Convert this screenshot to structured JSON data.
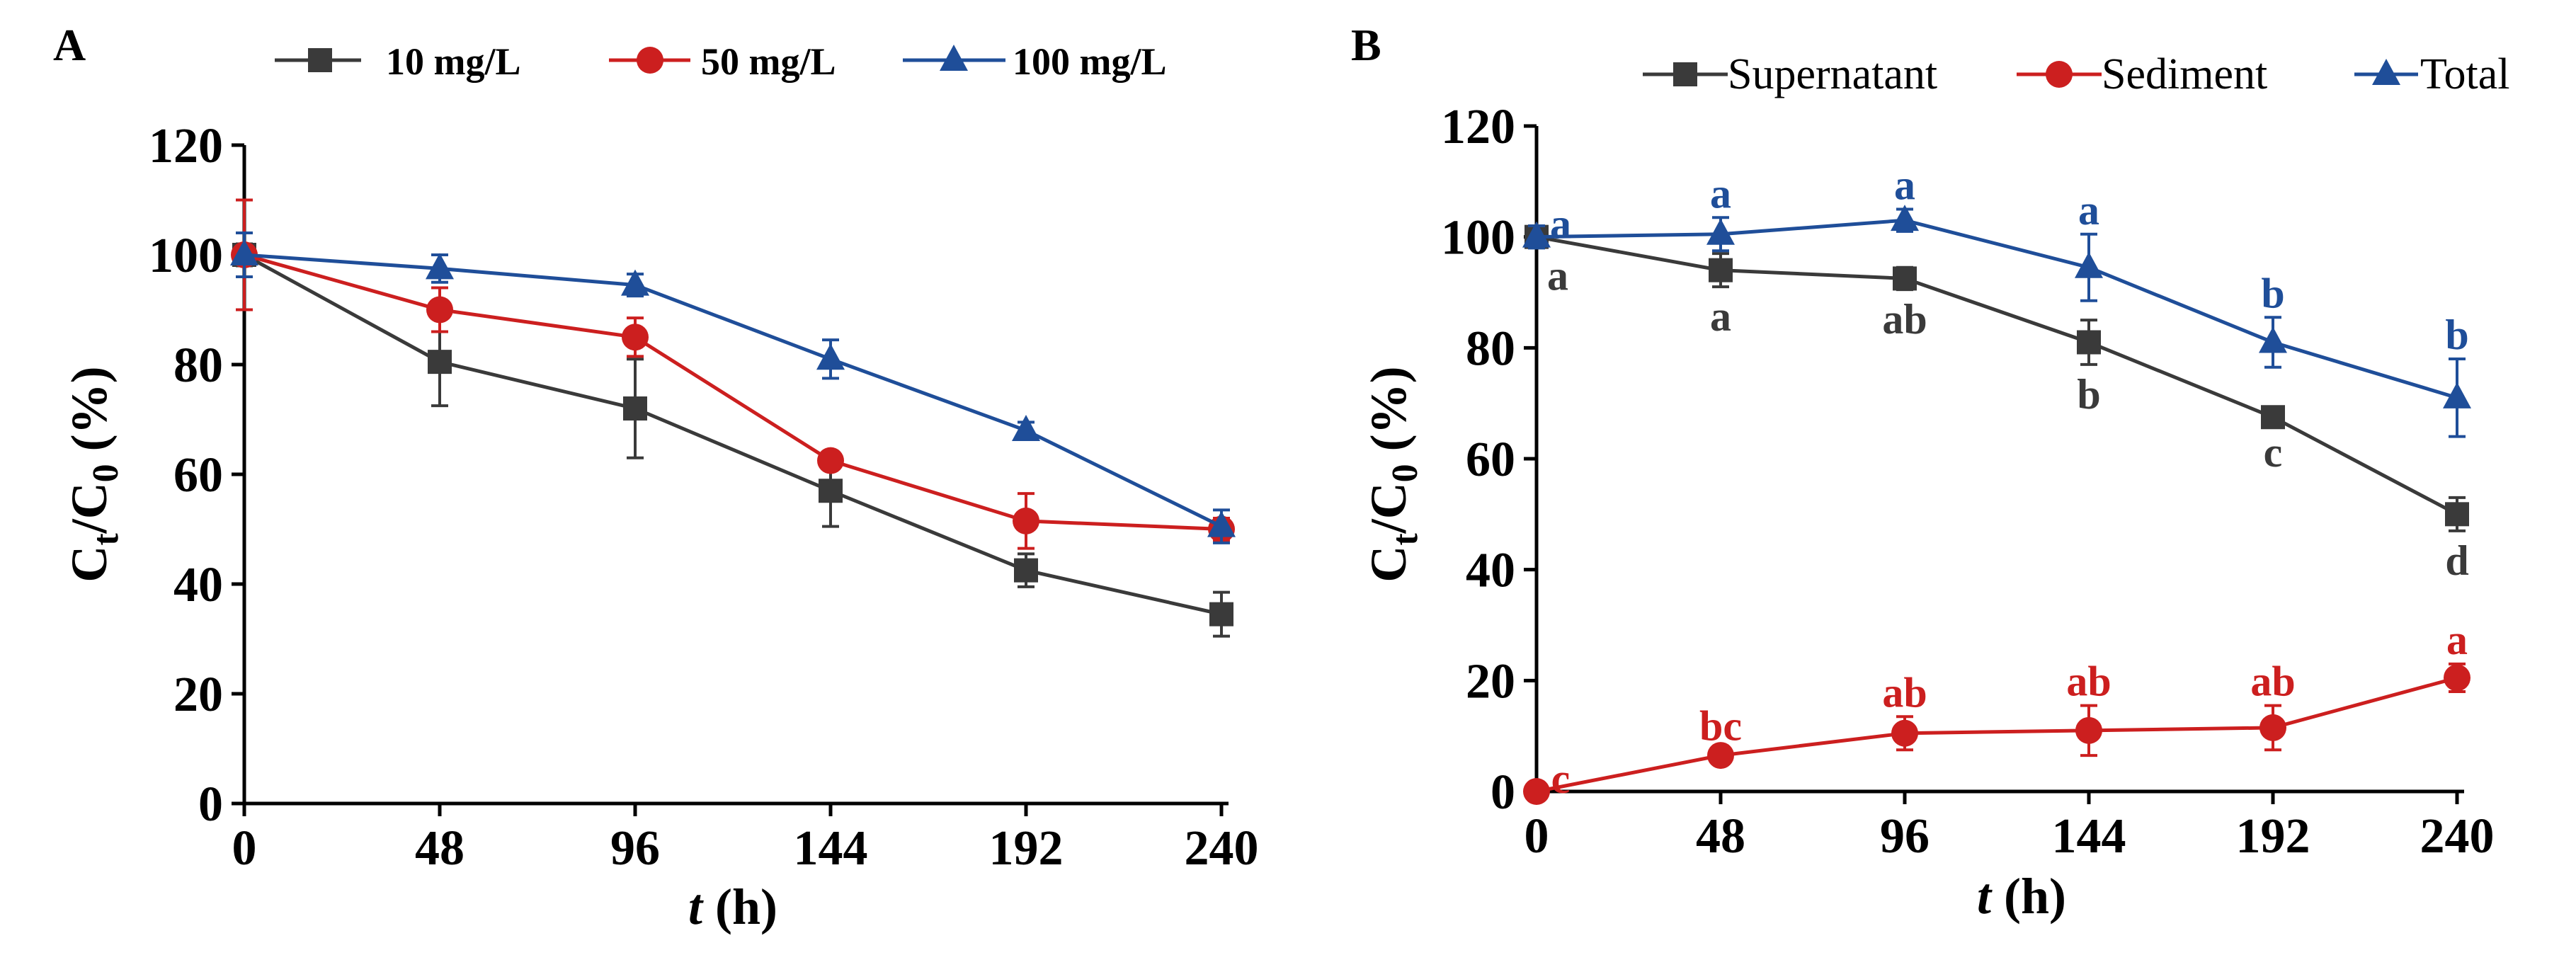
{
  "chart_data": [
    {
      "type": "line",
      "panel": "A",
      "xlabel_italic": "t",
      "xlabel_rest": " (h)",
      "ylabel_main": "C",
      "ylabel_sub1": "t",
      "ylabel_mid": "/C",
      "ylabel_sub2": "0",
      "ylabel_rest": " (%)",
      "x": [
        0,
        48,
        96,
        144,
        192,
        240
      ],
      "xticks": [
        "0",
        "48",
        "96",
        "144",
        "192",
        "240"
      ],
      "yticks": [
        "0",
        "20",
        "40",
        "60",
        "80",
        "100",
        "120"
      ],
      "xlim": [
        0,
        240
      ],
      "ylim": [
        0,
        120
      ],
      "legend": "top",
      "series": [
        {
          "name": "10 mg/L",
          "color": "#3a3a3a",
          "marker": "square",
          "values": [
            100,
            80.5,
            72,
            57,
            42.5,
            34.5
          ],
          "errors": [
            2,
            8,
            9,
            6.5,
            3,
            4
          ]
        },
        {
          "name": "50 mg/L",
          "color": "#cc1f1f",
          "marker": "circle",
          "values": [
            100,
            90,
            85,
            62.5,
            51.5,
            50
          ],
          "errors": [
            10,
            4,
            3.5,
            1.5,
            5,
            2
          ]
        },
        {
          "name": "100 mg/L",
          "color": "#1f4e99",
          "marker": "triangle",
          "values": [
            100,
            97.5,
            94.5,
            81,
            68,
            50.5
          ],
          "errors": [
            4,
            2.5,
            2,
            3.5,
            1.5,
            3
          ]
        }
      ]
    },
    {
      "type": "line",
      "panel": "B",
      "xlabel_italic": "t",
      "xlabel_rest": " (h)",
      "ylabel_main": "C",
      "ylabel_sub1": "t",
      "ylabel_mid": "/C",
      "ylabel_sub2": "0",
      "ylabel_rest": " (%)",
      "x": [
        0,
        48,
        96,
        144,
        192,
        240
      ],
      "xticks": [
        "0",
        "48",
        "96",
        "144",
        "192",
        "240"
      ],
      "yticks": [
        "0",
        "20",
        "40",
        "60",
        "80",
        "100",
        "120"
      ],
      "xlim": [
        0,
        240
      ],
      "ylim": [
        0,
        120
      ],
      "legend": "top-right",
      "series": [
        {
          "name": "Supernatant",
          "color": "#3a3a3a",
          "marker": "square",
          "values": [
            100,
            94,
            92.5,
            81,
            67.5,
            50
          ],
          "errors": [
            1.5,
            3,
            2,
            4,
            1,
            3
          ],
          "letters": [
            "a",
            "a",
            "ab",
            "b",
            "c",
            "d"
          ],
          "letter_pos": "below"
        },
        {
          "name": "Sediment",
          "color": "#cc1f1f",
          "marker": "circle",
          "values": [
            0,
            6.5,
            10.5,
            11,
            11.5,
            20.5
          ],
          "errors": [
            0.5,
            1,
            3,
            4.5,
            4,
            2.5
          ],
          "letters": [
            "c",
            "bc",
            "ab",
            "ab",
            "ab",
            "a"
          ],
          "letter_pos": "above"
        },
        {
          "name": "Total",
          "color": "#1f4e99",
          "marker": "triangle",
          "values": [
            100,
            100.5,
            103,
            94.5,
            81,
            71
          ],
          "errors": [
            2,
            3,
            2,
            6,
            4.5,
            7
          ],
          "letters": [
            "a",
            "a",
            "a",
            "a",
            "b",
            "b"
          ],
          "letter_pos": "above"
        }
      ]
    }
  ]
}
